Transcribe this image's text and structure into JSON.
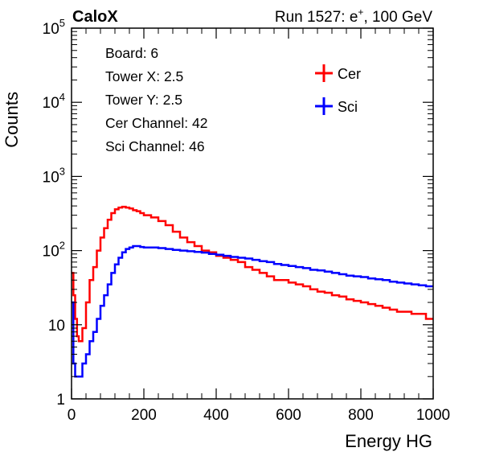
{
  "header": {
    "brand": "CaloX",
    "run_prefix": "Run 1527: e",
    "run_sup": "+",
    "run_suffix": ", 100 GeV"
  },
  "info_lines": [
    "Board: 6",
    "Tower X: 2.5",
    "Tower Y: 2.5",
    "Cer Channel: 42",
    "Sci Channel: 46"
  ],
  "chart_data": {
    "type": "line",
    "xlabel": "Energy HG",
    "ylabel": "Counts",
    "xlim": [
      0,
      1000
    ],
    "ylim": [
      1,
      100000
    ],
    "ylog": true,
    "xticks": [
      0,
      200,
      400,
      600,
      800,
      1000
    ],
    "xtick_labels": [
      "0",
      "200",
      "400",
      "600",
      "800",
      "1000"
    ],
    "yticks": [
      1,
      10,
      100,
      1000,
      10000,
      100000
    ],
    "ytick_labels": [
      {
        "base": "1",
        "exp": ""
      },
      {
        "base": "10",
        "exp": ""
      },
      {
        "base": "10",
        "exp": "2"
      },
      {
        "base": "10",
        "exp": "3"
      },
      {
        "base": "10",
        "exp": "4"
      },
      {
        "base": "10",
        "exp": "5"
      }
    ],
    "grid": false,
    "legend_position": "top-right",
    "series": [
      {
        "name": "Cer",
        "color": "#ff0000",
        "x": [
          0,
          5,
          10,
          15,
          20,
          30,
          40,
          50,
          60,
          70,
          80,
          90,
          100,
          110,
          120,
          130,
          140,
          150,
          160,
          170,
          180,
          190,
          200,
          220,
          240,
          260,
          280,
          300,
          320,
          340,
          360,
          380,
          400,
          420,
          440,
          460,
          480,
          500,
          520,
          540,
          560,
          580,
          600,
          620,
          640,
          660,
          680,
          700,
          720,
          740,
          760,
          780,
          800,
          820,
          840,
          860,
          880,
          900,
          920,
          940,
          960,
          980,
          1000
        ],
        "y": [
          50,
          25,
          12,
          7,
          6,
          9,
          20,
          40,
          60,
          100,
          150,
          200,
          260,
          320,
          360,
          380,
          390,
          380,
          370,
          350,
          340,
          320,
          300,
          280,
          250,
          220,
          180,
          150,
          130,
          115,
          100,
          95,
          85,
          80,
          75,
          70,
          60,
          55,
          50,
          45,
          40,
          40,
          37,
          35,
          33,
          30,
          28,
          27,
          25,
          24,
          22,
          21,
          20,
          19,
          18,
          17,
          16,
          15,
          15,
          14,
          14,
          12,
          12
        ]
      },
      {
        "name": "Sci",
        "color": "#0000ff",
        "x": [
          0,
          5,
          10,
          15,
          20,
          30,
          40,
          50,
          60,
          70,
          80,
          90,
          100,
          110,
          120,
          130,
          140,
          150,
          160,
          170,
          180,
          190,
          200,
          220,
          240,
          260,
          280,
          300,
          320,
          340,
          360,
          380,
          400,
          420,
          440,
          460,
          480,
          500,
          520,
          540,
          560,
          580,
          600,
          620,
          640,
          660,
          680,
          700,
          720,
          740,
          760,
          780,
          800,
          820,
          840,
          860,
          880,
          900,
          920,
          940,
          960,
          980,
          1000
        ],
        "y": [
          20,
          3,
          2,
          2,
          2,
          3,
          4,
          6,
          8,
          12,
          18,
          25,
          35,
          50,
          65,
          80,
          95,
          105,
          110,
          115,
          115,
          112,
          110,
          110,
          108,
          105,
          102,
          100,
          98,
          96,
          94,
          90,
          88,
          85,
          82,
          80,
          78,
          75,
          72,
          70,
          66,
          64,
          62,
          60,
          58,
          55,
          54,
          52,
          50,
          48,
          46,
          45,
          44,
          42,
          41,
          40,
          38,
          37,
          36,
          35,
          34,
          33,
          32
        ]
      }
    ]
  }
}
